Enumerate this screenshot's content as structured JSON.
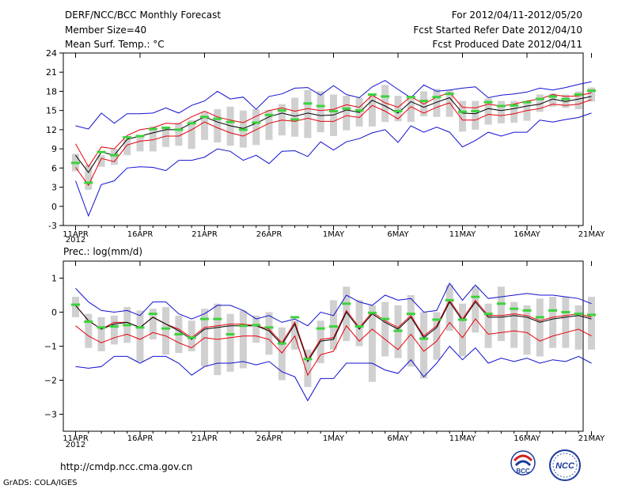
{
  "header": {
    "title": "DERF/NCC/BCC Monthly Forecast",
    "member_size": "Member Size=40",
    "variable": "Mean Surf. Temp.: °C",
    "period": "For 2012/04/11-2012/05/20",
    "refer_date": "Fcst Started Refer Date 2012/04/10",
    "produced_date": "Fcst Produced Date 2012/04/11"
  },
  "footer": {
    "url": "http://cmdp.ncc.cma.gov.cn",
    "credit": "GrADS: COLA/IGES",
    "logo_left": "BCC",
    "logo_right": "NCC"
  },
  "colors": {
    "median": "#000000",
    "spread": "#e8000b",
    "extreme": "#1010d0",
    "box": "#d0d0d0",
    "obs": "#3cd23c"
  },
  "chart_data": [
    {
      "type": "line",
      "title": "Mean Surf. Temp.: °C",
      "x_tick_labels": [
        "11APR",
        "16APR",
        "21APR",
        "26APR",
        "1MAY",
        "6MAY",
        "11MAY",
        "16MAY",
        "21MAY"
      ],
      "year_label": "2012",
      "ylim": [
        -3,
        24
      ],
      "yticks": [
        -3,
        0,
        3,
        6,
        9,
        12,
        15,
        18,
        21,
        24
      ],
      "ytick_labels": [
        "-3",
        "0",
        "3",
        "6",
        "9",
        "12",
        "15",
        "18",
        "21",
        "24"
      ],
      "series": [
        {
          "name": "max",
          "values": [
            12.6,
            12.1,
            14.6,
            13.0,
            14.5,
            14.5,
            14.6,
            15.4,
            14.6,
            15.8,
            16.5,
            18.0,
            16.8,
            17.1,
            15.2,
            17.2,
            17.6,
            18.5,
            18.6,
            17.4,
            18.9,
            17.5,
            17.0,
            18.7,
            19.7,
            18.3,
            17.0,
            19.0,
            18.0,
            18.2,
            18.5,
            18.7,
            17.0,
            17.4,
            17.6,
            17.9,
            18.5,
            18.2,
            18.6,
            19.1,
            19.5
          ]
        },
        {
          "name": "upper",
          "values": [
            9.8,
            6.2,
            9.3,
            9.0,
            11.1,
            12.0,
            12.3,
            13.0,
            12.9,
            14.0,
            14.9,
            14.0,
            13.5,
            13.1,
            14.1,
            15.0,
            15.4,
            14.9,
            15.3,
            15.0,
            15.2,
            15.9,
            15.5,
            17.4,
            16.2,
            15.5,
            17.2,
            16.0,
            17.1,
            17.8,
            15.5,
            15.4,
            16.0,
            15.7,
            16.0,
            16.5,
            16.8,
            17.5,
            17.2,
            17.3,
            17.8
          ]
        },
        {
          "name": "median",
          "values": [
            8.0,
            5.3,
            8.5,
            8.0,
            10.5,
            11.0,
            11.5,
            12.0,
            12.0,
            13.0,
            14.0,
            13.2,
            12.6,
            12.2,
            13.0,
            14.0,
            14.6,
            14.1,
            14.6,
            14.2,
            14.3,
            15.1,
            14.7,
            16.6,
            15.7,
            14.6,
            16.4,
            15.5,
            16.3,
            17.0,
            14.6,
            14.5,
            15.3,
            15.0,
            15.3,
            15.7,
            16.0,
            16.8,
            16.4,
            16.8,
            17.2
          ]
        },
        {
          "name": "lower",
          "values": [
            6.1,
            3.3,
            7.5,
            7.0,
            9.6,
            10.2,
            10.4,
            11.0,
            11.0,
            12.0,
            13.2,
            12.3,
            11.5,
            11.0,
            12.0,
            13.0,
            13.5,
            13.3,
            13.8,
            13.3,
            13.3,
            14.2,
            13.9,
            15.8,
            14.9,
            13.7,
            15.6,
            14.6,
            15.5,
            16.2,
            13.5,
            13.5,
            14.4,
            14.2,
            14.5,
            15.0,
            15.3,
            16.0,
            15.8,
            16.0,
            16.7
          ]
        },
        {
          "name": "min",
          "values": [
            4.0,
            -1.5,
            3.4,
            4.0,
            6.0,
            6.2,
            6.1,
            5.6,
            7.2,
            7.2,
            7.7,
            9.0,
            8.6,
            7.2,
            8.0,
            6.7,
            8.6,
            8.7,
            7.8,
            10.1,
            8.8,
            10.1,
            10.6,
            11.5,
            12.0,
            10.0,
            12.6,
            11.6,
            12.4,
            11.6,
            9.3,
            10.3,
            11.6,
            11.0,
            11.6,
            11.6,
            13.5,
            13.2,
            13.6,
            13.9,
            14.6
          ]
        },
        {
          "name": "box_high",
          "values": [
            8.2,
            6.5,
            8.0,
            9.0,
            10.5,
            11.1,
            12.5,
            12.2,
            13.0,
            13.5,
            14.8,
            15.2,
            15.6,
            15.0,
            15.2,
            15.1,
            16.0,
            17.0,
            18.2,
            18.0,
            17.5,
            17.3,
            17.0,
            17.3,
            19.0,
            17.3,
            17.3,
            18.0,
            18.4,
            18.2,
            16.5,
            16.5,
            16.9,
            16.5,
            16.5,
            16.5,
            17.5,
            17.7,
            17.5,
            18.0,
            18.6
          ]
        },
        {
          "name": "box_low",
          "values": [
            5.5,
            2.6,
            6.2,
            6.5,
            8.0,
            8.6,
            8.6,
            9.3,
            9.5,
            9.0,
            10.4,
            10.0,
            9.5,
            9.2,
            9.6,
            10.4,
            11.1,
            10.9,
            10.7,
            11.6,
            11.0,
            11.9,
            12.5,
            12.5,
            13.2,
            13.3,
            13.2,
            14.1,
            14.0,
            14.0,
            11.7,
            12.0,
            12.8,
            13.0,
            13.1,
            13.4,
            14.8,
            15.6,
            15.4,
            15.2,
            16.4
          ]
        },
        {
          "name": "observed",
          "values": [
            6.8,
            3.7,
            8.5,
            8.0,
            10.8,
            11.0,
            12.1,
            12.3,
            12.0,
            13.0,
            14.0,
            13.7,
            13.2,
            12.0,
            13.1,
            14.3,
            15.0,
            13.6,
            16.1,
            15.7,
            14.9,
            15.3,
            15.0,
            17.5,
            17.2,
            14.9,
            17.1,
            16.5,
            17.1,
            17.6,
            14.8,
            14.9,
            16.3,
            15.7,
            15.8,
            16.3,
            16.8,
            17.2,
            16.8,
            17.5,
            18.1
          ]
        }
      ]
    },
    {
      "type": "line",
      "title": "Prec.: log(mm/d)",
      "x_tick_labels": [
        "11APR",
        "16APR",
        "21APR",
        "26APR",
        "1MAY",
        "6MAY",
        "11MAY",
        "16MAY",
        "21MAY"
      ],
      "year_label": "2012",
      "ylim": [
        -3.5,
        1.5
      ],
      "yticks": [
        -3,
        -2,
        -1,
        0,
        1
      ],
      "ytick_labels": [
        "−3",
        "−2",
        "−1",
        "0",
        "1"
      ],
      "series": [
        {
          "name": "max",
          "values": [
            0.7,
            0.3,
            0.05,
            0.0,
            0.05,
            -0.1,
            0.3,
            0.3,
            -0.05,
            -0.2,
            -0.05,
            0.2,
            0.2,
            0.05,
            -0.2,
            -0.1,
            -0.3,
            -0.2,
            -0.4,
            0.0,
            -0.1,
            0.5,
            0.3,
            0.2,
            0.5,
            0.35,
            0.4,
            0.0,
            0.05,
            0.85,
            0.35,
            0.8,
            0.4,
            0.45,
            0.5,
            0.55,
            0.5,
            0.5,
            0.45,
            0.4,
            0.25
          ]
        },
        {
          "name": "upper",
          "values": [
            0.2,
            -0.25,
            -0.5,
            -0.3,
            -0.3,
            -0.45,
            -0.15,
            -0.35,
            -0.5,
            -0.75,
            -0.45,
            -0.4,
            -0.35,
            -0.35,
            -0.4,
            -0.5,
            -0.9,
            -0.3,
            -1.4,
            -0.8,
            -0.75,
            0.05,
            -0.45,
            0.0,
            -0.25,
            -0.45,
            -0.1,
            -0.7,
            -0.4,
            0.35,
            -0.2,
            0.35,
            -0.1,
            -0.1,
            -0.05,
            -0.1,
            -0.25,
            -0.15,
            -0.1,
            -0.05,
            -0.15
          ]
        },
        {
          "name": "median",
          "values": [
            0.2,
            -0.25,
            -0.5,
            -0.35,
            -0.3,
            -0.45,
            -0.15,
            -0.35,
            -0.55,
            -0.8,
            -0.5,
            -0.45,
            -0.4,
            -0.4,
            -0.4,
            -0.55,
            -0.95,
            -0.35,
            -1.45,
            -0.85,
            -0.8,
            0.0,
            -0.5,
            -0.05,
            -0.3,
            -0.5,
            -0.15,
            -0.75,
            -0.45,
            0.3,
            -0.25,
            0.3,
            -0.15,
            -0.15,
            -0.1,
            -0.15,
            -0.3,
            -0.2,
            -0.15,
            -0.1,
            -0.2
          ]
        },
        {
          "name": "lower",
          "values": [
            -0.4,
            -0.7,
            -0.9,
            -0.75,
            -0.65,
            -0.8,
            -0.6,
            -0.7,
            -0.9,
            -1.05,
            -0.75,
            -0.8,
            -0.75,
            -0.7,
            -0.7,
            -0.8,
            -1.2,
            -0.7,
            -1.85,
            -1.25,
            -1.15,
            -0.4,
            -0.85,
            -0.5,
            -0.8,
            -1.1,
            -0.65,
            -1.15,
            -0.85,
            -0.3,
            -0.75,
            -0.2,
            -0.65,
            -0.6,
            -0.55,
            -0.6,
            -0.85,
            -0.7,
            -0.6,
            -0.5,
            -0.7
          ]
        },
        {
          "name": "min",
          "values": [
            -1.6,
            -1.65,
            -1.6,
            -1.3,
            -1.3,
            -1.5,
            -1.3,
            -1.3,
            -1.5,
            -1.85,
            -1.6,
            -1.5,
            -1.5,
            -1.45,
            -1.55,
            -1.45,
            -1.75,
            -1.9,
            -2.6,
            -1.95,
            -1.95,
            -1.5,
            -1.5,
            -1.5,
            -1.7,
            -1.8,
            -1.4,
            -1.9,
            -1.5,
            -1.0,
            -1.4,
            -1.05,
            -1.5,
            -1.35,
            -1.45,
            -1.35,
            -1.5,
            -1.4,
            -1.45,
            -1.3,
            -1.5
          ]
        },
        {
          "name": "box_high",
          "values": [
            0.45,
            -0.05,
            -0.15,
            -0.1,
            0.15,
            0.05,
            0.1,
            0.15,
            -0.1,
            -0.25,
            0.1,
            0.25,
            -0.05,
            0.05,
            -0.1,
            0.0,
            -0.45,
            -0.25,
            -1.1,
            -0.25,
            0.35,
            0.75,
            0.35,
            0.2,
            0.3,
            0.2,
            0.5,
            0.0,
            0.0,
            0.8,
            0.25,
            0.75,
            0.25,
            0.75,
            0.3,
            0.2,
            0.4,
            0.45,
            0.45,
            0.2,
            0.45
          ]
        },
        {
          "name": "box_low",
          "values": [
            -0.15,
            -1.05,
            -1.15,
            -0.95,
            -0.9,
            -1.45,
            -0.8,
            -1.25,
            -1.2,
            -1.15,
            -1.6,
            -1.85,
            -1.75,
            -1.65,
            -0.9,
            -1.25,
            -2.0,
            -1.1,
            -2.2,
            -1.5,
            -1.1,
            -0.85,
            -1.0,
            -2.05,
            -1.3,
            -1.35,
            -1.6,
            -1.95,
            -1.4,
            -0.55,
            -1.3,
            -0.6,
            -1.05,
            -0.85,
            -1.05,
            -1.25,
            -1.3,
            -1.05,
            -1.05,
            -1.1,
            -1.1
          ]
        },
        {
          "name": "observed",
          "values": [
            0.22,
            -0.28,
            -0.45,
            -0.42,
            -0.38,
            -0.45,
            -0.05,
            -0.48,
            -0.65,
            -0.75,
            -0.2,
            -0.2,
            -0.65,
            -0.4,
            -0.38,
            -0.45,
            -0.92,
            -0.15,
            -1.38,
            -0.48,
            -0.42,
            0.25,
            -0.42,
            -0.02,
            -0.2,
            -0.55,
            -0.05,
            -0.78,
            -0.22,
            0.35,
            -0.22,
            0.45,
            -0.05,
            0.25,
            0.1,
            0.05,
            -0.15,
            0.05,
            0.0,
            -0.05,
            -0.08
          ]
        }
      ]
    }
  ]
}
